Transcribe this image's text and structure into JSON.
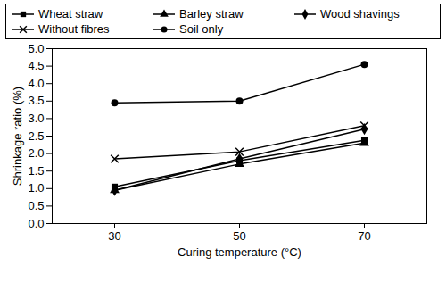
{
  "chart_data": {
    "type": "line",
    "x_label": "Curing temperature (°C)",
    "y_label": "Shrinkage ratio (%)",
    "categories": [
      "30",
      "50",
      "70"
    ],
    "ylim": [
      0,
      5
    ],
    "yticks": [
      {
        "value": 0,
        "label": "0.0"
      },
      {
        "value": 0.5,
        "label": "0.5"
      },
      {
        "value": 1,
        "label": "1.0"
      },
      {
        "value": 1.5,
        "label": "1.5"
      },
      {
        "value": 2,
        "label": "2.0"
      },
      {
        "value": 2.5,
        "label": "2.5"
      },
      {
        "value": 3,
        "label": "3.0"
      },
      {
        "value": 3.5,
        "label": "3.5"
      },
      {
        "value": 4,
        "label": "4.0"
      },
      {
        "value": 4.5,
        "label": "4.5"
      },
      {
        "value": 5,
        "label": "5.0"
      }
    ],
    "grid": false,
    "legend": "top",
    "series": [
      {
        "name": "Wheat straw",
        "color": "#000000",
        "marker": "square",
        "values": [
          1.05,
          1.8,
          2.38
        ]
      },
      {
        "name": "Barley straw",
        "color": "#000000",
        "marker": "triangle",
        "values": [
          0.95,
          1.7,
          2.3
        ]
      },
      {
        "name": "Wood shavings",
        "color": "#000000",
        "marker": "diamond",
        "values": [
          0.95,
          1.85,
          2.7
        ]
      },
      {
        "name": "Without fibres",
        "color": "#000000",
        "marker": "times",
        "values": [
          1.85,
          2.05,
          2.8
        ]
      },
      {
        "name": "Soil only",
        "color": "#000000",
        "marker": "circle",
        "values": [
          3.45,
          3.5,
          4.55
        ]
      }
    ]
  }
}
